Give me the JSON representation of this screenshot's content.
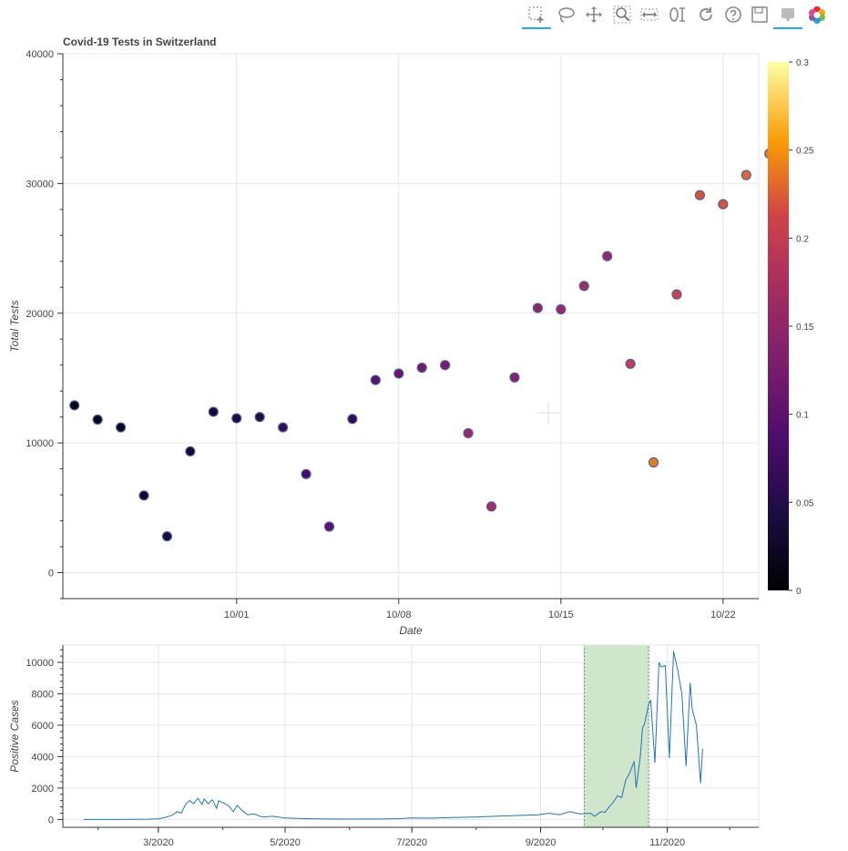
{
  "toolbar": {
    "tools": [
      {
        "name": "box-zoom-tool",
        "icon": "box-zoom-icon",
        "active": true
      },
      {
        "name": "lasso-select-tool",
        "icon": "lasso-icon",
        "active": false
      },
      {
        "name": "pan-tool",
        "icon": "pan-icon",
        "active": false
      },
      {
        "name": "zoom-in-tool",
        "icon": "magnifier-icon",
        "active": false
      },
      {
        "name": "x-pan-tool",
        "icon": "x-pan-icon",
        "active": false
      },
      {
        "name": "wheel-zoom-tool",
        "icon": "wheel-zoom-icon",
        "active": false
      },
      {
        "name": "reset-tool",
        "icon": "reset-icon",
        "active": false
      },
      {
        "name": "help-tool",
        "icon": "help-icon",
        "active": false
      },
      {
        "name": "save-tool",
        "icon": "save-icon",
        "active": false
      },
      {
        "name": "hover-tool",
        "icon": "hover-icon",
        "active": true
      },
      {
        "name": "bokeh-logo",
        "icon": "bokeh-logo-icon",
        "active": false
      }
    ]
  },
  "chart_data": [
    {
      "type": "scatter",
      "title": "Covid-19 Tests in Switzerland",
      "xlabel": "Date",
      "ylabel": "Total Tests",
      "x_axis_type": "date",
      "x_range": [
        "2020-09-24",
        "2020-10-23"
      ],
      "ylim": [
        -2000,
        40000
      ],
      "x_ticks": [
        "10/01",
        "10/08",
        "10/15",
        "10/22"
      ],
      "y_ticks": [
        "0",
        "10000",
        "20000",
        "30000",
        "40000"
      ],
      "grid": true,
      "marker_outline": "#4a5fa8",
      "colorbar": {
        "palette": "inferno",
        "range": [
          0,
          0.3
        ],
        "ticks": [
          "0",
          "0.05",
          "0.1",
          "0.15",
          "0.2",
          "0.25",
          "0.3"
        ]
      },
      "points": [
        {
          "x": "2020-09-24",
          "y": 12900,
          "c": 0.01
        },
        {
          "x": "2020-09-25",
          "y": 11800,
          "c": 0.015
        },
        {
          "x": "2020-09-26",
          "y": 11200,
          "c": 0.02
        },
        {
          "x": "2020-09-27",
          "y": 5950,
          "c": 0.025
        },
        {
          "x": "2020-09-28",
          "y": 2800,
          "c": 0.04
        },
        {
          "x": "2020-09-29",
          "y": 9350,
          "c": 0.03
        },
        {
          "x": "2020-09-30",
          "y": 12400,
          "c": 0.035
        },
        {
          "x": "2020-10-01",
          "y": 11900,
          "c": 0.04
        },
        {
          "x": "2020-10-02",
          "y": 12000,
          "c": 0.045
        },
        {
          "x": "2020-10-03",
          "y": 11200,
          "c": 0.06
        },
        {
          "x": "2020-10-04",
          "y": 7600,
          "c": 0.08
        },
        {
          "x": "2020-10-05",
          "y": 3550,
          "c": 0.1
        },
        {
          "x": "2020-10-06",
          "y": 11850,
          "c": 0.06
        },
        {
          "x": "2020-10-07",
          "y": 14850,
          "c": 0.1
        },
        {
          "x": "2020-10-08",
          "y": 15350,
          "c": 0.11
        },
        {
          "x": "2020-10-09",
          "y": 15800,
          "c": 0.12
        },
        {
          "x": "2020-10-10",
          "y": 16000,
          "c": 0.13
        },
        {
          "x": "2020-10-11",
          "y": 10750,
          "c": 0.16
        },
        {
          "x": "2020-10-12",
          "y": 5100,
          "c": 0.17
        },
        {
          "x": "2020-10-13",
          "y": 15050,
          "c": 0.14
        },
        {
          "x": "2020-10-14",
          "y": 20400,
          "c": 0.15
        },
        {
          "x": "2020-10-15",
          "y": 20300,
          "c": 0.16
        },
        {
          "x": "2020-10-16",
          "y": 22100,
          "c": 0.17
        },
        {
          "x": "2020-10-17",
          "y": 24400,
          "c": 0.16
        },
        {
          "x": "2020-10-18",
          "y": 16100,
          "c": 0.2
        },
        {
          "x": "2020-10-19",
          "y": 8500,
          "c": 0.24
        },
        {
          "x": "2020-10-20",
          "y": 21450,
          "c": 0.21
        },
        {
          "x": "2020-10-21",
          "y": 29100,
          "c": 0.22
        },
        {
          "x": "2020-10-22",
          "y": 28400,
          "c": 0.22
        },
        {
          "x": "2020-10-23",
          "y": 30650,
          "c": 0.23
        },
        {
          "x": "2020-10-24",
          "y": 32300,
          "c": 0.24
        }
      ]
    },
    {
      "type": "line",
      "xlabel": "",
      "ylabel": "Positive Cases",
      "x_axis_type": "date",
      "x_range": [
        "2020-01-15",
        "2020-12-15"
      ],
      "ylim": [
        -500,
        11100
      ],
      "x_ticks": [
        "3/2020",
        "5/2020",
        "7/2020",
        "9/2020",
        "11/2020"
      ],
      "y_ticks": [
        "0",
        "2000",
        "4000",
        "6000",
        "8000",
        "10000"
      ],
      "grid": true,
      "line_color": "#1f77b4",
      "range_box": {
        "start": "2020-09-22",
        "end": "2020-10-23",
        "fill": "#cfe6cc",
        "stroke": "#4a8a4a"
      },
      "series": [
        {
          "values": [
            [
              "2020-01-25",
              0
            ],
            [
              "2020-02-10",
              0
            ],
            [
              "2020-02-25",
              15
            ],
            [
              "2020-03-01",
              40
            ],
            [
              "2020-03-05",
              150
            ],
            [
              "2020-03-08",
              300
            ],
            [
              "2020-03-10",
              500
            ],
            [
              "2020-03-12",
              400
            ],
            [
              "2020-03-14",
              950
            ],
            [
              "2020-03-16",
              1200
            ],
            [
              "2020-03-18",
              1000
            ],
            [
              "2020-03-20",
              1350
            ],
            [
              "2020-03-22",
              950
            ],
            [
              "2020-03-23",
              1300
            ],
            [
              "2020-03-25",
              1000
            ],
            [
              "2020-03-27",
              1250
            ],
            [
              "2020-03-29",
              700
            ],
            [
              "2020-03-30",
              1200
            ],
            [
              "2020-04-02",
              1000
            ],
            [
              "2020-04-04",
              850
            ],
            [
              "2020-04-06",
              500
            ],
            [
              "2020-04-08",
              900
            ],
            [
              "2020-04-10",
              600
            ],
            [
              "2020-04-13",
              300
            ],
            [
              "2020-04-16",
              350
            ],
            [
              "2020-04-20",
              150
            ],
            [
              "2020-04-25",
              200
            ],
            [
              "2020-05-01",
              100
            ],
            [
              "2020-05-10",
              50
            ],
            [
              "2020-05-20",
              30
            ],
            [
              "2020-06-01",
              20
            ],
            [
              "2020-06-15",
              30
            ],
            [
              "2020-06-25",
              50
            ],
            [
              "2020-07-01",
              100
            ],
            [
              "2020-07-10",
              80
            ],
            [
              "2020-07-20",
              120
            ],
            [
              "2020-07-31",
              150
            ],
            [
              "2020-08-10",
              200
            ],
            [
              "2020-08-20",
              250
            ],
            [
              "2020-08-31",
              300
            ],
            [
              "2020-09-05",
              400
            ],
            [
              "2020-09-10",
              300
            ],
            [
              "2020-09-15",
              500
            ],
            [
              "2020-09-20",
              350
            ],
            [
              "2020-09-25",
              400
            ],
            [
              "2020-09-27",
              200
            ],
            [
              "2020-09-30",
              500
            ],
            [
              "2020-10-02",
              450
            ],
            [
              "2020-10-04",
              800
            ],
            [
              "2020-10-06",
              1100
            ],
            [
              "2020-10-08",
              1500
            ],
            [
              "2020-10-10",
              1400
            ],
            [
              "2020-10-12",
              2500
            ],
            [
              "2020-10-14",
              3000
            ],
            [
              "2020-10-16",
              3700
            ],
            [
              "2020-10-17",
              2000
            ],
            [
              "2020-10-19",
              4000
            ],
            [
              "2020-10-20",
              5800
            ],
            [
              "2020-10-21",
              6100
            ],
            [
              "2020-10-23",
              7300
            ],
            [
              "2020-10-24",
              7600
            ],
            [
              "2020-10-26",
              3600
            ],
            [
              "2020-10-28",
              10000
            ],
            [
              "2020-10-29",
              9700
            ],
            [
              "2020-10-31",
              9800
            ],
            [
              "2020-11-02",
              3900
            ],
            [
              "2020-11-04",
              10700
            ],
            [
              "2020-11-06",
              9500
            ],
            [
              "2020-11-08",
              8000
            ],
            [
              "2020-11-10",
              3400
            ],
            [
              "2020-11-12",
              8700
            ],
            [
              "2020-11-13",
              7000
            ],
            [
              "2020-11-15",
              6000
            ],
            [
              "2020-11-17",
              2300
            ],
            [
              "2020-11-18",
              4500
            ]
          ]
        }
      ]
    }
  ]
}
